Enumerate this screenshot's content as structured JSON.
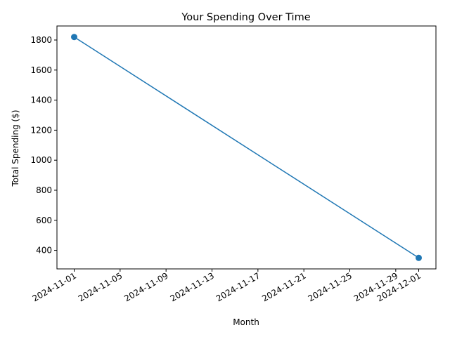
{
  "chart_data": {
    "type": "line",
    "title": "Your Spending Over Time",
    "xlabel": "Month",
    "ylabel": "Total Spending ($)",
    "x": [
      "2024-11-01",
      "2024-12-01"
    ],
    "series": [
      {
        "values": [
          1820,
          350
        ],
        "color": "#1f77b4"
      }
    ],
    "xticks": [
      "2024-11-01",
      "2024-11-05",
      "2024-11-09",
      "2024-11-13",
      "2024-11-17",
      "2024-11-21",
      "2024-11-25",
      "2024-11-29",
      "2024-12-01"
    ],
    "yticks": [
      400,
      600,
      800,
      1000,
      1200,
      1400,
      1600,
      1800
    ],
    "xlim": [
      "2024-10-30.5",
      "2024-12-02.5"
    ],
    "ylim": [
      276.5,
      1893.5
    ],
    "grid": false,
    "marker": "circle"
  }
}
